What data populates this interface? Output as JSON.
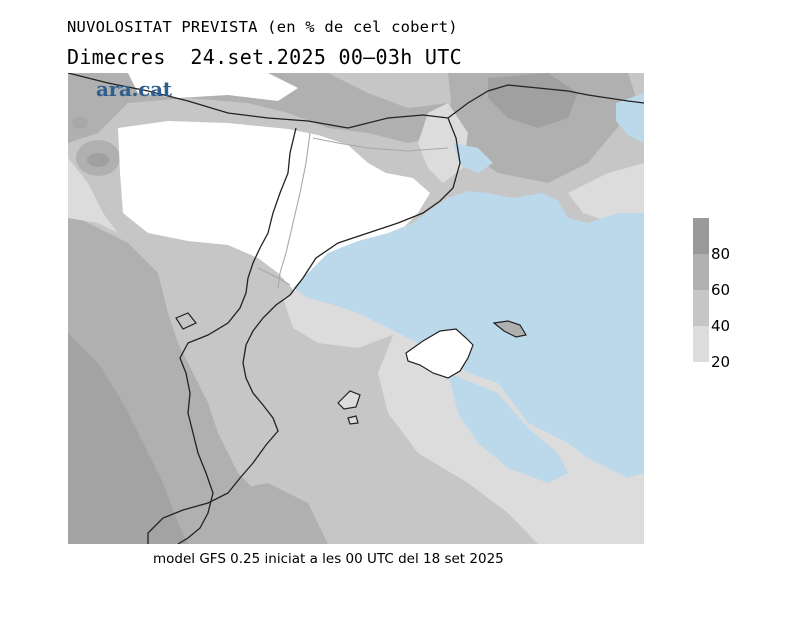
{
  "header": {
    "title": "NUVOLOSITAT PREVISTA (en % de cel cobert)",
    "subtitle": "Dimecres  24.set.2025 00–03h UTC"
  },
  "map": {
    "logo": "ara.cat",
    "colors": {
      "sea": "#bcd9eb",
      "cloud_lt20": "#ffffff",
      "cloud_20_40": "#dcdcdc",
      "cloud_40_60": "#c6c6c6",
      "cloud_60_80": "#b0b0b0",
      "cloud_80_100": "#9a9a9a",
      "border": "#222222",
      "province_border": "#a8a8a8"
    }
  },
  "legend": {
    "labels": [
      "80",
      "60",
      "40",
      "20"
    ],
    "colors": [
      "#9a9a9a",
      "#b0b0b0",
      "#c6c6c6",
      "#dcdcdc"
    ]
  },
  "footer": {
    "text": "model GFS 0.25 iniciat a les 00 UTC del 18 set 2025"
  }
}
